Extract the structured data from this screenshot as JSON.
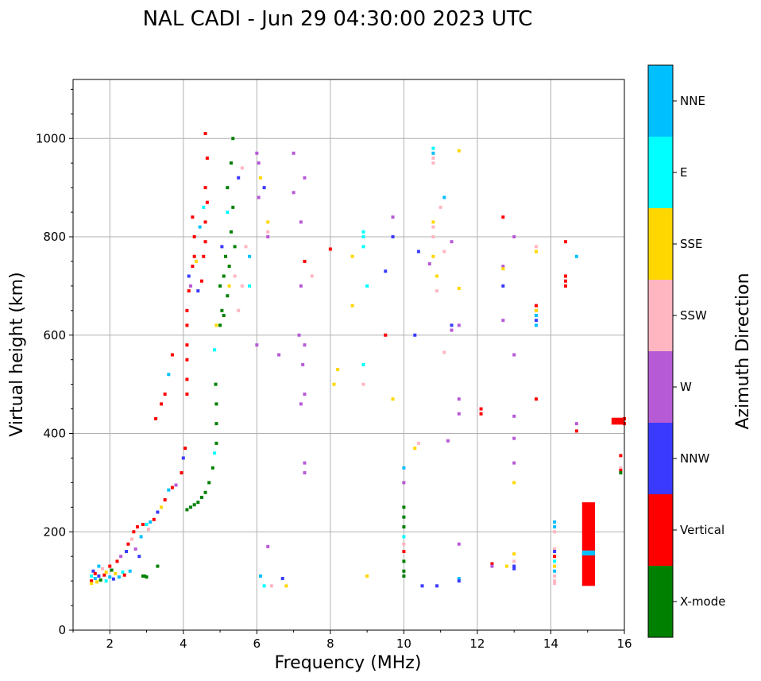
{
  "chart_data": {
    "type": "scatter",
    "title": "NAL CADI - Jun 29 04:30:00 2023 UTC",
    "xlabel": "Frequency (MHz)",
    "ylabel": "Virtual height (km)",
    "xlim": [
      1,
      16
    ],
    "ylim": [
      0,
      1120
    ],
    "xticks": [
      2,
      4,
      6,
      8,
      10,
      12,
      14,
      16
    ],
    "yticks": [
      0,
      200,
      400,
      600,
      800,
      1000
    ],
    "grid": true,
    "colorbar": {
      "label": "Azimuth Direction",
      "categories": [
        "X-mode",
        "Vertical",
        "NNW",
        "W",
        "SSW",
        "SSE",
        "E",
        "NNE"
      ],
      "colors": [
        "#008000",
        "#ff0000",
        "#3a3aff",
        "#b75ad6",
        "#ffb6c1",
        "#ffd700",
        "#00ffff",
        "#00bfff"
      ]
    },
    "points": [
      [
        1.5,
        100,
        1
      ],
      [
        1.5,
        110,
        6
      ],
      [
        1.5,
        95,
        5
      ],
      [
        1.55,
        120,
        2
      ],
      [
        1.6,
        105,
        7
      ],
      [
        1.6,
        115,
        1
      ],
      [
        1.65,
        98,
        5
      ],
      [
        1.7,
        130,
        7
      ],
      [
        1.7,
        110,
        2
      ],
      [
        1.75,
        102,
        0
      ],
      [
        1.8,
        125,
        4
      ],
      [
        1.85,
        112,
        1
      ],
      [
        1.9,
        100,
        6
      ],
      [
        1.9,
        118,
        5
      ],
      [
        2.0,
        108,
        7
      ],
      [
        2.0,
        130,
        1
      ],
      [
        2.05,
        122,
        0
      ],
      [
        2.1,
        104,
        2
      ],
      [
        2.15,
        115,
        5
      ],
      [
        2.2,
        140,
        1
      ],
      [
        2.25,
        108,
        7
      ],
      [
        2.3,
        150,
        3
      ],
      [
        2.35,
        118,
        6
      ],
      [
        2.4,
        112,
        1
      ],
      [
        2.45,
        160,
        2
      ],
      [
        2.5,
        175,
        1
      ],
      [
        2.55,
        120,
        7
      ],
      [
        2.6,
        185,
        4
      ],
      [
        2.65,
        200,
        1
      ],
      [
        2.7,
        165,
        3
      ],
      [
        2.75,
        210,
        1
      ],
      [
        2.8,
        150,
        2
      ],
      [
        2.85,
        190,
        7
      ],
      [
        2.9,
        215,
        1
      ],
      [
        2.95,
        110,
        0
      ],
      [
        3.0,
        215,
        6
      ],
      [
        3.05,
        205,
        4
      ],
      [
        3.1,
        220,
        7
      ],
      [
        3.2,
        225,
        1
      ],
      [
        3.3,
        240,
        2
      ],
      [
        3.4,
        250,
        5
      ],
      [
        3.5,
        265,
        1
      ],
      [
        3.6,
        285,
        7
      ],
      [
        3.7,
        290,
        1
      ],
      [
        3.8,
        295,
        3
      ],
      [
        3.95,
        320,
        1
      ],
      [
        4.0,
        350,
        2
      ],
      [
        3.25,
        430,
        1
      ],
      [
        3.4,
        460,
        1
      ],
      [
        3.5,
        480,
        1
      ],
      [
        3.6,
        520,
        7
      ],
      [
        3.7,
        560,
        1
      ],
      [
        2.9,
        110,
        0
      ],
      [
        3.0,
        108,
        0
      ],
      [
        3.3,
        130,
        0
      ],
      [
        4.1,
        245,
        0
      ],
      [
        4.2,
        250,
        0
      ],
      [
        4.3,
        255,
        0
      ],
      [
        4.4,
        260,
        0
      ],
      [
        4.5,
        270,
        0
      ],
      [
        4.6,
        280,
        0
      ],
      [
        4.7,
        300,
        0
      ],
      [
        4.8,
        330,
        0
      ],
      [
        4.85,
        360,
        6
      ],
      [
        4.9,
        380,
        0
      ],
      [
        4.9,
        420,
        0
      ],
      [
        4.9,
        460,
        0
      ],
      [
        4.88,
        500,
        0
      ],
      [
        4.85,
        570,
        6
      ],
      [
        4.1,
        480,
        1
      ],
      [
        4.1,
        510,
        1
      ],
      [
        4.1,
        550,
        1
      ],
      [
        4.1,
        580,
        1
      ],
      [
        4.1,
        620,
        1
      ],
      [
        4.1,
        650,
        1
      ],
      [
        4.15,
        690,
        1
      ],
      [
        4.15,
        720,
        2
      ],
      [
        4.2,
        700,
        3
      ],
      [
        4.25,
        740,
        1
      ],
      [
        4.3,
        760,
        1
      ],
      [
        4.3,
        800,
        1
      ],
      [
        4.25,
        840,
        1
      ],
      [
        4.4,
        690,
        2
      ],
      [
        4.5,
        710,
        1
      ],
      [
        4.55,
        760,
        1
      ],
      [
        4.6,
        790,
        1
      ],
      [
        4.6,
        830,
        1
      ],
      [
        4.65,
        870,
        1
      ],
      [
        4.6,
        900,
        1
      ],
      [
        4.65,
        960,
        1
      ],
      [
        4.6,
        1010,
        1
      ],
      [
        4.05,
        370,
        1
      ],
      [
        4.35,
        750,
        5
      ],
      [
        4.45,
        820,
        7
      ],
      [
        4.55,
        860,
        6
      ],
      [
        4.9,
        620,
        5
      ],
      [
        5.0,
        700,
        0
      ],
      [
        5.05,
        650,
        0
      ],
      [
        5.1,
        720,
        0
      ],
      [
        5.15,
        760,
        0
      ],
      [
        5.2,
        680,
        0
      ],
      [
        5.25,
        740,
        0
      ],
      [
        5.3,
        810,
        0
      ],
      [
        5.35,
        860,
        0
      ],
      [
        5.4,
        780,
        0
      ],
      [
        5.2,
        900,
        0
      ],
      [
        5.3,
        950,
        0
      ],
      [
        5.35,
        1000,
        0
      ],
      [
        5.0,
        620,
        0
      ],
      [
        5.1,
        640,
        0
      ],
      [
        5.25,
        700,
        5
      ],
      [
        5.4,
        720,
        4
      ],
      [
        5.5,
        650,
        4
      ],
      [
        5.6,
        700,
        4
      ],
      [
        5.7,
        780,
        4
      ],
      [
        5.5,
        920,
        2
      ],
      [
        5.6,
        940,
        4
      ],
      [
        5.8,
        760,
        7
      ],
      [
        5.8,
        700,
        6
      ],
      [
        5.2,
        850,
        6
      ],
      [
        5.05,
        780,
        2
      ],
      [
        6.0,
        970,
        3
      ],
      [
        6.05,
        950,
        3
      ],
      [
        6.1,
        920,
        5
      ],
      [
        6.2,
        900,
        2
      ],
      [
        6.05,
        880,
        3
      ],
      [
        6.3,
        830,
        5
      ],
      [
        6.3,
        810,
        4
      ],
      [
        6.3,
        800,
        3
      ],
      [
        6.0,
        580,
        3
      ],
      [
        6.1,
        110,
        7
      ],
      [
        6.2,
        90,
        6
      ],
      [
        6.3,
        170,
        3
      ],
      [
        6.4,
        90,
        4
      ],
      [
        6.6,
        560,
        3
      ],
      [
        6.7,
        105,
        2
      ],
      [
        6.8,
        90,
        5
      ],
      [
        7.0,
        970,
        3
      ],
      [
        7.0,
        890,
        3
      ],
      [
        7.3,
        920,
        3
      ],
      [
        7.2,
        830,
        3
      ],
      [
        7.3,
        750,
        1
      ],
      [
        7.2,
        700,
        3
      ],
      [
        7.15,
        600,
        3
      ],
      [
        7.3,
        580,
        3
      ],
      [
        7.25,
        540,
        3
      ],
      [
        7.2,
        460,
        3
      ],
      [
        7.3,
        480,
        3
      ],
      [
        7.3,
        340,
        3
      ],
      [
        7.3,
        320,
        3
      ],
      [
        7.5,
        720,
        4
      ],
      [
        8.0,
        775,
        1
      ],
      [
        8.1,
        500,
        5
      ],
      [
        8.2,
        530,
        5
      ],
      [
        8.6,
        760,
        5
      ],
      [
        8.6,
        660,
        5
      ],
      [
        8.9,
        800,
        6
      ],
      [
        8.9,
        810,
        6
      ],
      [
        8.9,
        780,
        6
      ],
      [
        8.9,
        540,
        6
      ],
      [
        8.9,
        500,
        4
      ],
      [
        9.0,
        700,
        6
      ],
      [
        9.0,
        110,
        5
      ],
      [
        9.5,
        730,
        2
      ],
      [
        9.5,
        600,
        1
      ],
      [
        9.7,
        800,
        2
      ],
      [
        9.7,
        840,
        3
      ],
      [
        9.7,
        470,
        5
      ],
      [
        10.0,
        250,
        0
      ],
      [
        10.0,
        230,
        0
      ],
      [
        10.0,
        210,
        0
      ],
      [
        10.0,
        190,
        6
      ],
      [
        10.0,
        175,
        4
      ],
      [
        10.0,
        160,
        1
      ],
      [
        10.0,
        140,
        0
      ],
      [
        10.0,
        120,
        0
      ],
      [
        10.0,
        110,
        0
      ],
      [
        10.0,
        300,
        3
      ],
      [
        10.0,
        330,
        7
      ],
      [
        10.3,
        370,
        5
      ],
      [
        10.3,
        600,
        2
      ],
      [
        10.4,
        380,
        4
      ],
      [
        10.4,
        770,
        2
      ],
      [
        10.5,
        90,
        2
      ],
      [
        10.7,
        745,
        3
      ],
      [
        10.8,
        980,
        6
      ],
      [
        10.8,
        970,
        7
      ],
      [
        10.8,
        960,
        4
      ],
      [
        10.8,
        950,
        4
      ],
      [
        10.8,
        830,
        5
      ],
      [
        10.8,
        820,
        4
      ],
      [
        10.8,
        800,
        4
      ],
      [
        10.8,
        760,
        5
      ],
      [
        10.9,
        720,
        5
      ],
      [
        10.9,
        690,
        4
      ],
      [
        10.9,
        90,
        2
      ],
      [
        11.0,
        860,
        4
      ],
      [
        11.1,
        880,
        7
      ],
      [
        11.1,
        770,
        4
      ],
      [
        11.1,
        565,
        4
      ],
      [
        11.2,
        385,
        3
      ],
      [
        11.3,
        790,
        3
      ],
      [
        11.3,
        620,
        2
      ],
      [
        11.3,
        610,
        3
      ],
      [
        11.5,
        975,
        5
      ],
      [
        11.5,
        695,
        5
      ],
      [
        11.5,
        620,
        3
      ],
      [
        11.5,
        470,
        3
      ],
      [
        11.5,
        440,
        3
      ],
      [
        11.5,
        175,
        3
      ],
      [
        11.5,
        105,
        7
      ],
      [
        11.5,
        100,
        2
      ],
      [
        12.1,
        450,
        1
      ],
      [
        12.1,
        440,
        1
      ],
      [
        12.4,
        135,
        1
      ],
      [
        12.4,
        130,
        3
      ],
      [
        12.7,
        840,
        1
      ],
      [
        12.7,
        740,
        3
      ],
      [
        12.7,
        735,
        5
      ],
      [
        12.7,
        700,
        2
      ],
      [
        12.7,
        630,
        3
      ],
      [
        12.8,
        130,
        5
      ],
      [
        13.0,
        800,
        3
      ],
      [
        13.0,
        560,
        3
      ],
      [
        13.0,
        435,
        3
      ],
      [
        13.0,
        390,
        3
      ],
      [
        13.0,
        340,
        3
      ],
      [
        13.0,
        300,
        5
      ],
      [
        13.0,
        155,
        5
      ],
      [
        13.0,
        140,
        4
      ],
      [
        13.0,
        130,
        2
      ],
      [
        13.0,
        125,
        2
      ],
      [
        13.6,
        780,
        4
      ],
      [
        13.6,
        770,
        5
      ],
      [
        13.6,
        660,
        1
      ],
      [
        13.6,
        650,
        5
      ],
      [
        13.6,
        640,
        7
      ],
      [
        13.6,
        630,
        2
      ],
      [
        13.6,
        620,
        7
      ],
      [
        13.6,
        470,
        1
      ],
      [
        14.1,
        220,
        7
      ],
      [
        14.1,
        210,
        7
      ],
      [
        14.1,
        200,
        4
      ],
      [
        14.1,
        165,
        4
      ],
      [
        14.1,
        160,
        2
      ],
      [
        14.1,
        150,
        1
      ],
      [
        14.1,
        140,
        6
      ],
      [
        14.1,
        130,
        5
      ],
      [
        14.1,
        120,
        7
      ],
      [
        14.1,
        110,
        4
      ],
      [
        14.1,
        100,
        4
      ],
      [
        14.1,
        95,
        4
      ],
      [
        14.4,
        790,
        1
      ],
      [
        14.4,
        720,
        1
      ],
      [
        14.4,
        710,
        1
      ],
      [
        14.4,
        700,
        1
      ],
      [
        14.7,
        760,
        7
      ],
      [
        14.7,
        420,
        3
      ],
      [
        14.7,
        405,
        1
      ],
      [
        16.0,
        430,
        1
      ],
      [
        16.0,
        420,
        1
      ],
      [
        15.9,
        355,
        1
      ],
      [
        15.9,
        330,
        4
      ],
      [
        15.9,
        325,
        1
      ],
      [
        15.9,
        320,
        0
      ]
    ],
    "blocks": [
      {
        "x0": 14.85,
        "x1": 15.2,
        "y0": 90,
        "y1": 260,
        "c": 1
      },
      {
        "x0": 14.85,
        "x1": 15.2,
        "y0": 152,
        "y1": 162,
        "c": 7
      },
      {
        "x0": 15.65,
        "x1": 16.0,
        "y0": 418,
        "y1": 432,
        "c": 1
      }
    ]
  }
}
